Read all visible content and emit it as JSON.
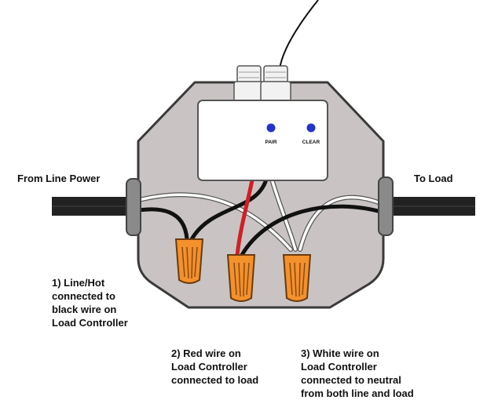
{
  "labels": {
    "from_line_power": "From Line Power",
    "to_load": "To Load",
    "controller_buttons": {
      "pair": "PAIR",
      "clear": "CLEAR"
    }
  },
  "notes": {
    "note1": [
      "1) Line/Hot",
      "connected to",
      "black wire on",
      "Load Controller"
    ],
    "note2": [
      "2) Red wire on",
      "Load Controller",
      "connected to load"
    ],
    "note3": [
      "3) White wire on",
      "Load Controller",
      "connected to neutral",
      "from both line and load"
    ]
  },
  "colors": {
    "box": "#c9c4c3",
    "box_outline": "#3a3a3a",
    "controller": "#ffffff",
    "button_led": "#2233cc",
    "wire_nut": "#f3912c",
    "grommet": "#8a8a8a",
    "hot_wire": "#111111",
    "load_wire": "#d01f25",
    "neutral_wire": "#ffffff",
    "cable": "#222222"
  },
  "icons": {
    "pair_button": "blue-led-button",
    "clear_button": "blue-led-button",
    "wire_nuts": "wire-nut-icon"
  }
}
